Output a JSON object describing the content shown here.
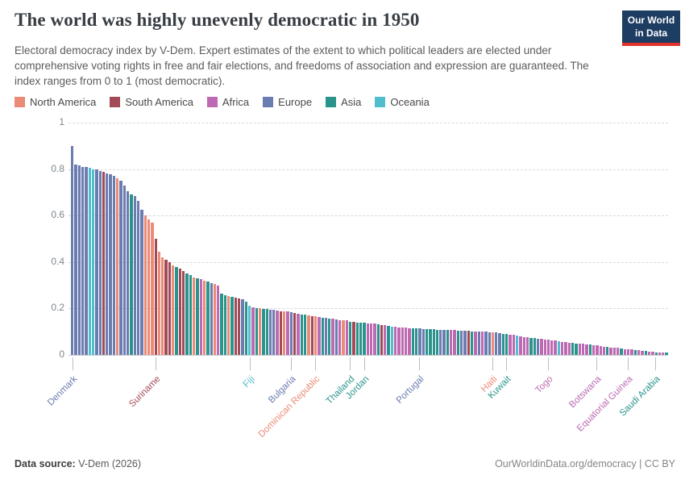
{
  "header": {
    "title": "The world was highly unevenly democratic in 1950",
    "logo_line1": "Our World",
    "logo_line2": "in Data"
  },
  "subtitle": "Electoral democracy index by V-Dem. Expert estimates of the extent to which political leaders are elected under comprehensive voting rights in free and fair elections, and freedoms of association and expression are guaranteed. The index ranges from 0 to 1 (most democratic).",
  "continent_colors": {
    "NA": "#E98B76",
    "SA": "#A24B57",
    "AF": "#BC6AB2",
    "EU": "#6B7CB0",
    "AS": "#2A948C",
    "OC": "#52BECD"
  },
  "legend": [
    {
      "label": "North America",
      "continent": "NA"
    },
    {
      "label": "South America",
      "continent": "SA"
    },
    {
      "label": "Africa",
      "continent": "AF"
    },
    {
      "label": "Europe",
      "continent": "EU"
    },
    {
      "label": "Asia",
      "continent": "AS"
    },
    {
      "label": "Oceania",
      "continent": "OC"
    }
  ],
  "chart_data": {
    "type": "bar",
    "title": "Electoral democracy index, 1950",
    "ylabel": "",
    "xlabel": "",
    "ylim": [
      0,
      1
    ],
    "y_ticks": [
      0,
      0.2,
      0.4,
      0.6,
      0.8,
      1
    ],
    "grid": "horizontal-dashed",
    "legend_position": "top",
    "sort": "descending",
    "bars": [
      [
        "EU",
        0.9
      ],
      [
        "EU",
        0.82
      ],
      [
        "EU",
        0.815
      ],
      [
        "EU",
        0.81
      ],
      [
        "EU",
        0.808
      ],
      [
        "OC",
        0.805
      ],
      [
        "OC",
        0.8
      ],
      [
        "EU",
        0.798
      ],
      [
        "EU",
        0.79
      ],
      [
        "SA",
        0.787
      ],
      [
        "EU",
        0.782
      ],
      [
        "EU",
        0.778
      ],
      [
        "EU",
        0.772
      ],
      [
        "NA",
        0.762
      ],
      [
        "EU",
        0.75
      ],
      [
        "EU",
        0.728
      ],
      [
        "EU",
        0.705
      ],
      [
        "AS",
        0.69
      ],
      [
        "EU",
        0.683
      ],
      [
        "EU",
        0.662
      ],
      [
        "EU",
        0.625
      ],
      [
        "NA",
        0.6
      ],
      [
        "NA",
        0.585
      ],
      [
        "NA",
        0.568
      ],
      [
        "SA",
        0.5
      ],
      [
        "NA",
        0.445
      ],
      [
        "NA",
        0.42
      ],
      [
        "SA",
        0.41
      ],
      [
        "SA",
        0.398
      ],
      [
        "NA",
        0.385
      ],
      [
        "AS",
        0.38
      ],
      [
        "SA",
        0.37
      ],
      [
        "SA",
        0.36
      ],
      [
        "AS",
        0.352
      ],
      [
        "AS",
        0.345
      ],
      [
        "NA",
        0.335
      ],
      [
        "AS",
        0.33
      ],
      [
        "AF",
        0.325
      ],
      [
        "NA",
        0.32
      ],
      [
        "AS",
        0.315
      ],
      [
        "EU",
        0.31
      ],
      [
        "NA",
        0.305
      ],
      [
        "AF",
        0.3
      ],
      [
        "AS",
        0.265
      ],
      [
        "AS",
        0.258
      ],
      [
        "NA",
        0.252
      ],
      [
        "AS",
        0.25
      ],
      [
        "SA",
        0.247
      ],
      [
        "SA",
        0.243
      ],
      [
        "EU",
        0.24
      ],
      [
        "AS",
        0.23
      ],
      [
        "OC",
        0.212
      ],
      [
        "AF",
        0.206
      ],
      [
        "AS",
        0.202
      ],
      [
        "NA",
        0.2
      ],
      [
        "AS",
        0.198
      ],
      [
        "AS",
        0.197
      ],
      [
        "EU",
        0.195
      ],
      [
        "EU",
        0.193
      ],
      [
        "AF",
        0.191
      ],
      [
        "SA",
        0.189
      ],
      [
        "NA",
        0.187
      ],
      [
        "AF",
        0.186
      ],
      [
        "EU",
        0.185
      ],
      [
        "SA",
        0.18
      ],
      [
        "AF",
        0.177
      ],
      [
        "AS",
        0.174
      ],
      [
        "AS",
        0.172
      ],
      [
        "NA",
        0.17
      ],
      [
        "SA",
        0.168
      ],
      [
        "NA",
        0.165
      ],
      [
        "AF",
        0.163
      ],
      [
        "AS",
        0.161
      ],
      [
        "EU",
        0.159
      ],
      [
        "AS",
        0.157
      ],
      [
        "AF",
        0.155
      ],
      [
        "EU",
        0.153
      ],
      [
        "AF",
        0.151
      ],
      [
        "NA",
        0.15
      ],
      [
        "AF",
        0.148
      ],
      [
        "AS",
        0.143
      ],
      [
        "SA",
        0.141
      ],
      [
        "AS",
        0.14
      ],
      [
        "AS",
        0.139
      ],
      [
        "AS",
        0.138
      ],
      [
        "AF",
        0.136
      ],
      [
        "AF",
        0.135
      ],
      [
        "AF",
        0.134
      ],
      [
        "AS",
        0.132
      ],
      [
        "SA",
        0.13
      ],
      [
        "AF",
        0.128
      ],
      [
        "AS",
        0.126
      ],
      [
        "OC",
        0.122
      ],
      [
        "AF",
        0.12
      ],
      [
        "AF",
        0.119
      ],
      [
        "AF",
        0.118
      ],
      [
        "AF",
        0.117
      ],
      [
        "AF",
        0.116
      ],
      [
        "AS",
        0.115
      ],
      [
        "AS",
        0.114
      ],
      [
        "EU",
        0.113
      ],
      [
        "EU",
        0.112
      ],
      [
        "AS",
        0.111
      ],
      [
        "AS",
        0.11
      ],
      [
        "AS",
        0.11
      ],
      [
        "AS",
        0.109
      ],
      [
        "EU",
        0.108
      ],
      [
        "EU",
        0.108
      ],
      [
        "AS",
        0.107
      ],
      [
        "AF",
        0.106
      ],
      [
        "AF",
        0.106
      ],
      [
        "AS",
        0.105
      ],
      [
        "EU",
        0.104
      ],
      [
        "EU",
        0.104
      ],
      [
        "SA",
        0.103
      ],
      [
        "AS",
        0.102
      ],
      [
        "AF",
        0.101
      ],
      [
        "EU",
        0.1
      ],
      [
        "AF",
        0.1
      ],
      [
        "EU",
        0.099
      ],
      [
        "EU",
        0.098
      ],
      [
        "NA",
        0.097
      ],
      [
        "EU",
        0.096
      ],
      [
        "EU",
        0.094
      ],
      [
        "AS",
        0.092
      ],
      [
        "AS",
        0.09
      ],
      [
        "AF",
        0.088
      ],
      [
        "AF",
        0.086
      ],
      [
        "OC",
        0.084
      ],
      [
        "AF",
        0.08
      ],
      [
        "AF",
        0.078
      ],
      [
        "AF",
        0.076
      ],
      [
        "AS",
        0.074
      ],
      [
        "AS",
        0.072
      ],
      [
        "EU",
        0.07
      ],
      [
        "AF",
        0.069
      ],
      [
        "AF",
        0.067
      ],
      [
        "AF",
        0.065
      ],
      [
        "AF",
        0.063
      ],
      [
        "AF",
        0.061
      ],
      [
        "OC",
        0.059
      ],
      [
        "AF",
        0.057
      ],
      [
        "AF",
        0.055
      ],
      [
        "AF",
        0.053
      ],
      [
        "AS",
        0.051
      ],
      [
        "AS",
        0.049
      ],
      [
        "AF",
        0.048
      ],
      [
        "AF",
        0.047
      ],
      [
        "AF",
        0.045
      ],
      [
        "AS",
        0.044
      ],
      [
        "AF",
        0.042
      ],
      [
        "AF",
        0.04
      ],
      [
        "AF",
        0.038
      ],
      [
        "AF",
        0.036
      ],
      [
        "AS",
        0.034
      ],
      [
        "AF",
        0.032
      ],
      [
        "AF",
        0.031
      ],
      [
        "AF",
        0.03
      ],
      [
        "AS",
        0.028
      ],
      [
        "AF",
        0.026
      ],
      [
        "AF",
        0.025
      ],
      [
        "AF",
        0.024
      ],
      [
        "AS",
        0.022
      ],
      [
        "AF",
        0.02
      ],
      [
        "AF",
        0.018
      ],
      [
        "AS",
        0.016
      ],
      [
        "AF",
        0.015
      ],
      [
        "AF",
        0.014
      ],
      [
        "AS",
        0.012
      ],
      [
        "AF",
        0.011
      ],
      [
        "AF",
        0.01
      ],
      [
        "AS",
        0.009
      ]
    ],
    "labeled_countries": [
      {
        "bar": 0,
        "name": "Denmark",
        "continent": "EU",
        "value": 0.9
      },
      {
        "bar": 24,
        "name": "Suriname",
        "continent": "SA",
        "value": 0.5
      },
      {
        "bar": 51,
        "name": "Fiji",
        "continent": "OC",
        "value": 0.212
      },
      {
        "bar": 63,
        "name": "Bulgaria",
        "continent": "EU",
        "value": 0.185
      },
      {
        "bar": 70,
        "name": "Dominican Republic",
        "continent": "NA",
        "value": 0.165
      },
      {
        "bar": 80,
        "name": "Thailand",
        "continent": "AS",
        "value": 0.143
      },
      {
        "bar": 84,
        "name": "Jordan",
        "continent": "AS",
        "value": 0.138
      },
      {
        "bar": 100,
        "name": "Portugal",
        "continent": "EU",
        "value": 0.113
      },
      {
        "bar": 121,
        "name": "Haiti",
        "continent": "NA",
        "value": 0.097
      },
      {
        "bar": 125,
        "name": "Kuwait",
        "continent": "AS",
        "value": 0.09
      },
      {
        "bar": 137,
        "name": "Togo",
        "continent": "AF",
        "value": 0.065
      },
      {
        "bar": 151,
        "name": "Botswana",
        "continent": "AF",
        "value": 0.04
      },
      {
        "bar": 160,
        "name": "Equatorial Guinea",
        "continent": "AF",
        "value": 0.025
      },
      {
        "bar": 168,
        "name": "Saudi Arabia",
        "continent": "AS",
        "value": 0.012
      }
    ]
  },
  "footer": {
    "source_label": "Data source:",
    "source_value": " V-Dem (2026)",
    "right": "OurWorldinData.org/democracy | CC BY"
  }
}
